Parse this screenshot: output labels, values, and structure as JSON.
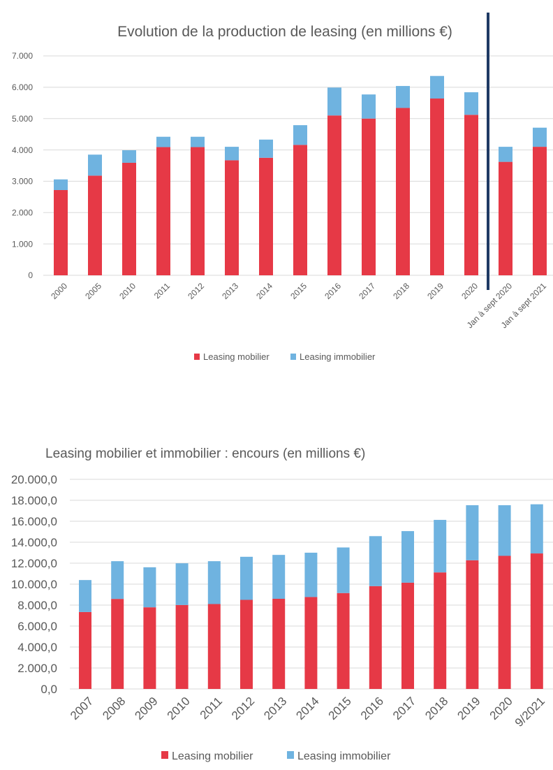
{
  "colors": {
    "mobilier": "#e63946",
    "immobilier": "#6fb3e0",
    "divider": "#1f3a64"
  },
  "chart_data": [
    {
      "type": "bar",
      "stacked": true,
      "title": "Evolution de la production de leasing (en millions €)",
      "xlabel": "",
      "ylabel": "",
      "ylim": [
        0,
        7000
      ],
      "yticks": [
        0,
        1000,
        2000,
        3000,
        4000,
        5000,
        6000,
        7000
      ],
      "ytick_labels": [
        "0",
        "1.000",
        "2.000",
        "3.000",
        "4.000",
        "5.000",
        "6.000",
        "7.000"
      ],
      "grid": true,
      "legend_position": "bottom",
      "categories": [
        "2000",
        "2005",
        "2010",
        "2011",
        "2012",
        "2013",
        "2014",
        "2015",
        "2016",
        "2017",
        "2018",
        "2019",
        "2020",
        "Jan à sept 2020",
        "Jan à sept 2021"
      ],
      "series": [
        {
          "name": "Leasing mobilier",
          "color_key": "mobilier",
          "values": [
            2720,
            3180,
            3590,
            4090,
            4090,
            3670,
            3750,
            4160,
            5100,
            5000,
            5340,
            5640,
            5120,
            3620,
            4100
          ]
        },
        {
          "name": "Leasing immobilier",
          "color_key": "immobilier",
          "values": [
            340,
            670,
            400,
            330,
            330,
            430,
            580,
            630,
            890,
            770,
            700,
            720,
            720,
            480,
            610
          ]
        }
      ],
      "annotations": [
        {
          "type": "vertical-divider",
          "between": [
            "2020",
            "Jan à sept 2020"
          ]
        }
      ]
    },
    {
      "type": "bar",
      "stacked": true,
      "title": "Leasing mobilier et immobilier : encours (en millions €)",
      "xlabel": "",
      "ylabel": "",
      "ylim": [
        0,
        20000
      ],
      "yticks": [
        0,
        2000,
        4000,
        6000,
        8000,
        10000,
        12000,
        14000,
        16000,
        18000,
        20000
      ],
      "ytick_labels": [
        "0,0",
        "2.000,0",
        "4.000,0",
        "6.000,0",
        "8.000,0",
        "10.000,0",
        "12.000,0",
        "14.000,0",
        "16.000,0",
        "18.000,0",
        "20.000,0"
      ],
      "grid": true,
      "legend_position": "bottom",
      "categories": [
        "2007",
        "2008",
        "2009",
        "2010",
        "2011",
        "2012",
        "2013",
        "2014",
        "2015",
        "2016",
        "2017",
        "2018",
        "2019",
        "2020",
        "9/2021"
      ],
      "series": [
        {
          "name": "Leasing mobilier",
          "color_key": "mobilier",
          "values": [
            7340,
            8590,
            7790,
            8010,
            8100,
            8500,
            8600,
            8770,
            9150,
            9810,
            10140,
            11120,
            12280,
            12700,
            12930
          ]
        },
        {
          "name": "Leasing immobilier",
          "color_key": "immobilier",
          "values": [
            3050,
            3600,
            3820,
            3980,
            4090,
            4110,
            4190,
            4230,
            4350,
            4770,
            4920,
            5010,
            5250,
            4830,
            4690
          ]
        }
      ]
    }
  ]
}
